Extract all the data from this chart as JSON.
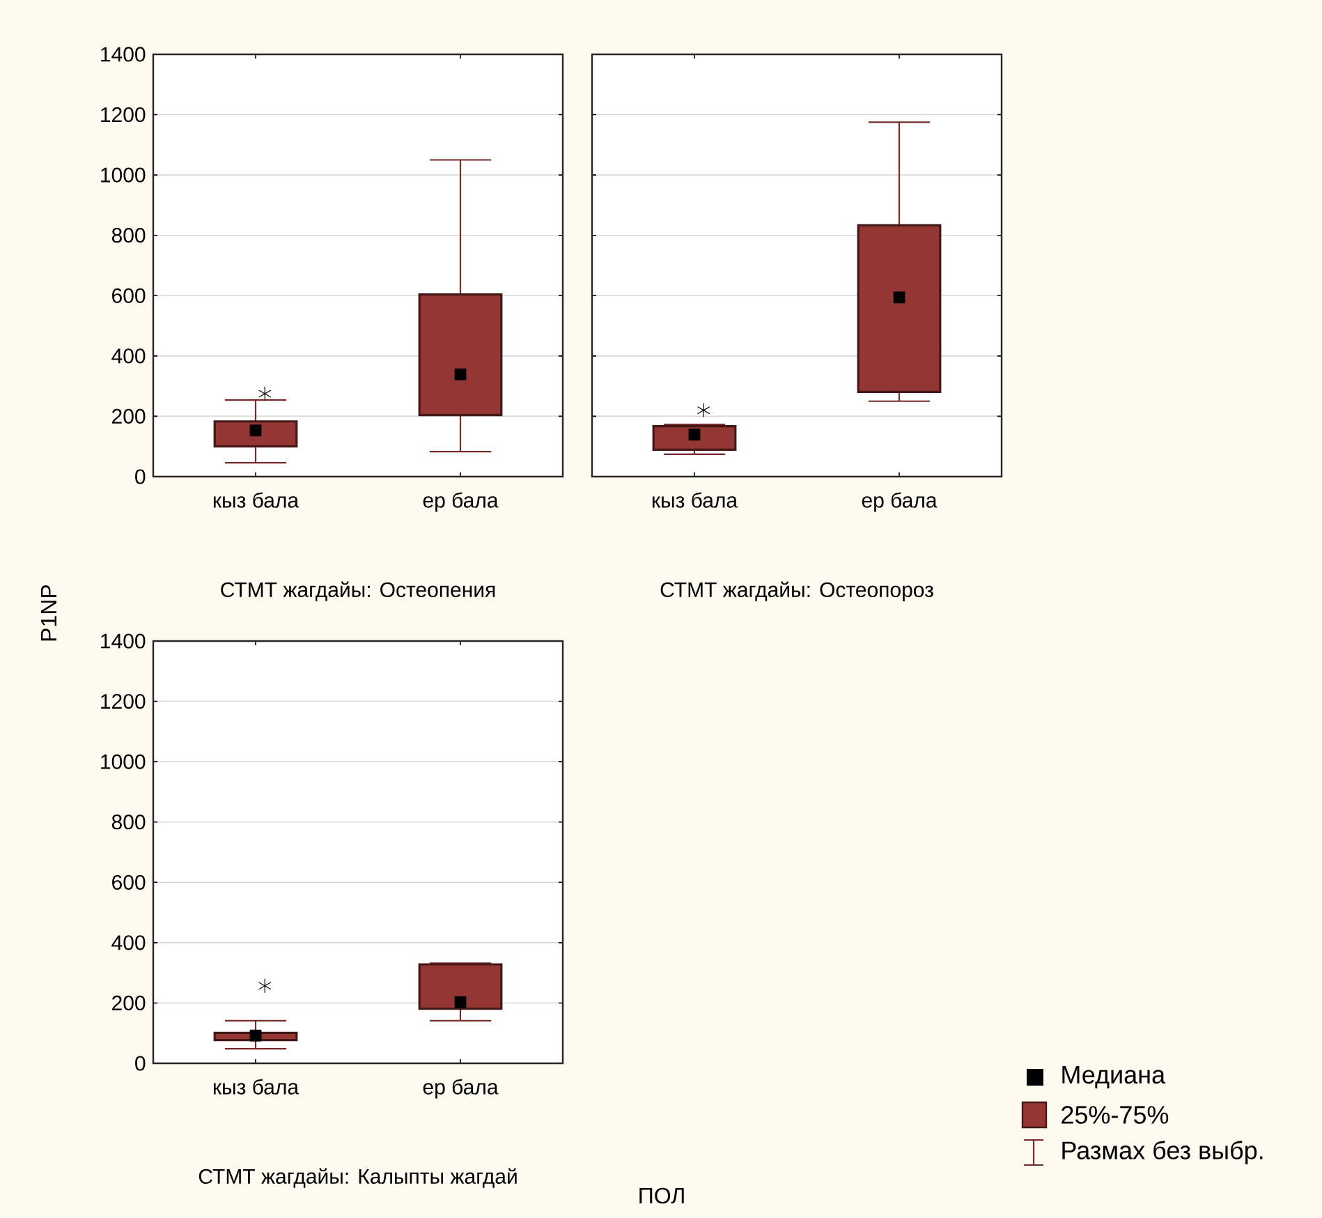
{
  "chart_data": [
    {
      "type": "box",
      "title": "СТМТ жагдайы: Остеопения",
      "ylabel": "P1NP",
      "categories": [
        "кыз бала",
        "ер бала"
      ],
      "color": "#943634",
      "boxes": [
        {
          "low": 46,
          "q1": 100,
          "median": 153,
          "q3": 183,
          "high": 254,
          "outliers": [
            275
          ]
        },
        {
          "low": 83,
          "q1": 204,
          "median": 339,
          "q3": 604,
          "high": 1050
        }
      ],
      "ylim": [
        0,
        1400
      ],
      "yticks": [
        0,
        200,
        400,
        600,
        800,
        1000,
        1200,
        1400
      ],
      "grid": "y"
    },
    {
      "type": "box",
      "title": "СТМТ жагдайы: Остеопороз",
      "categories": [
        "кыз бала",
        "ер бала"
      ],
      "color": "#943634",
      "boxes": [
        {
          "low": 74,
          "q1": 89,
          "median": 139,
          "q3": 167,
          "high": 173,
          "outliers": [
            220
          ]
        },
        {
          "low": 250,
          "q1": 281,
          "median": 594,
          "q3": 833,
          "high": 1175
        }
      ],
      "ylim": [
        0,
        1400
      ],
      "yticks": [
        0,
        200,
        400,
        600,
        800,
        1000,
        1200,
        1400
      ],
      "grid": "y",
      "tick_labels": "x"
    },
    {
      "type": "box",
      "title": "СТМТ жагдайы: Калыпты жагдай",
      "xlabel": "ПОЛ",
      "categories": [
        "кыз бала",
        "ер бала"
      ],
      "color": "#943634",
      "boxes": [
        {
          "low": 48,
          "q1": 77,
          "median": 92,
          "q3": 101,
          "high": 141,
          "outliers": [
            257
          ]
        },
        {
          "low": 141,
          "q1": 181,
          "median": 203,
          "q3": 328,
          "high": 332
        }
      ],
      "ylim": [
        0,
        1400
      ],
      "yticks": [
        0,
        200,
        400,
        600,
        800,
        1000,
        1200,
        1400
      ],
      "grid": "y",
      "annotations": [
        "Медиана",
        "25%-75%",
        "Размах без выбр."
      ]
    }
  ]
}
